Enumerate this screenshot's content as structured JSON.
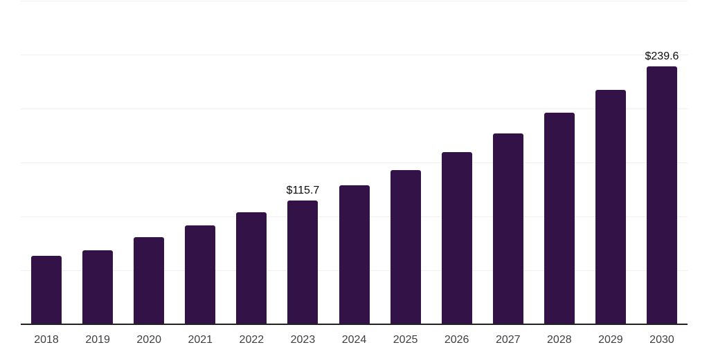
{
  "chart_data": {
    "type": "bar",
    "title": "",
    "xlabel": "",
    "ylabel": "",
    "categories": [
      "2018",
      "2019",
      "2020",
      "2021",
      "2022",
      "2023",
      "2024",
      "2025",
      "2026",
      "2027",
      "2028",
      "2029",
      "2030"
    ],
    "values": [
      64.1,
      69.2,
      81.4,
      92.3,
      104.4,
      115.7,
      129.4,
      143.6,
      160.2,
      177.5,
      196.7,
      217.9,
      239.6
    ],
    "value_labels": {
      "2023": "$115.7",
      "2030": "$239.6"
    },
    "value_prefix": "$",
    "ylim": [
      0,
      300
    ],
    "gridline_step": 50,
    "grid": true,
    "y_tick_labels_visible": false,
    "legend_position": "none",
    "colors": {
      "bar": "#331347",
      "axis_line": "#222222",
      "gridline": "#efefef",
      "value_label": "#0a0a0a",
      "tick_label": "#3f3f3f",
      "background": "#ffffff"
    }
  }
}
